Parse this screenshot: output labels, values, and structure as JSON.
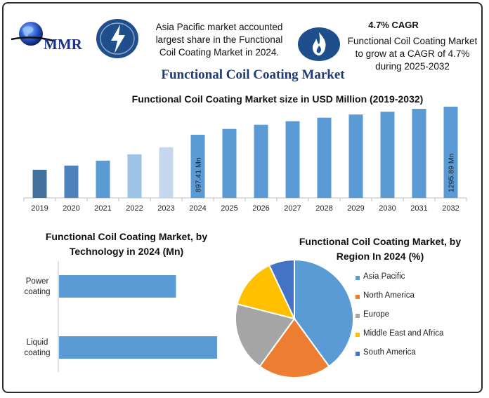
{
  "header": {
    "logo_text": "MMR",
    "headline": "Asia Pacific market accounted largest share in the Functional Coil Coating Market in 2024.",
    "cagr_title": "4.7% CAGR",
    "cagr_text": "Functional Coil Coating Market to grow at a CAGR of 4.7% during 2025-2032"
  },
  "icons": {
    "left_badge": "lightning-bolt-icon",
    "right_badge": "flame-icon"
  },
  "main_title": "Functional Coil Coating Market",
  "colors": {
    "title": "#1f3a78",
    "badge": "#1f4e8c",
    "bar": "#5b9bd5"
  },
  "chart_data": [
    {
      "type": "bar",
      "title": "Functional Coil Coating Market size in USD Million (2019-2032)",
      "xlabel": "",
      "ylabel": "",
      "categories": [
        "2019",
        "2020",
        "2021",
        "2022",
        "2023",
        "2024",
        "2025",
        "2026",
        "2027",
        "2028",
        "2029",
        "2030",
        "2031",
        "2032"
      ],
      "values": [
        400,
        460,
        530,
        620,
        720,
        897.41,
        980,
        1040,
        1090,
        1140,
        1185,
        1225,
        1265,
        1295.89
      ],
      "bar_colors": [
        "#41719c",
        "#4f81bd",
        "#5b9bd5",
        "#9dc3e6",
        "#c5d7ee",
        "#5b9bd5",
        "#5b9bd5",
        "#5b9bd5",
        "#5b9bd5",
        "#5b9bd5",
        "#5b9bd5",
        "#5b9bd5",
        "#5b9bd5",
        "#5b9bd5"
      ],
      "data_labels": [
        {
          "category": "2024",
          "text": "897.41 Mn"
        },
        {
          "category": "2032",
          "text": "1295.89 Mn"
        }
      ],
      "ylim": [
        0,
        1295.89
      ],
      "grid": false
    },
    {
      "type": "bar",
      "orientation": "horizontal",
      "title": "Functional Coil Coating Market, by Technology in 2024 (Mn)",
      "categories": [
        "Power coating",
        "Liquid coating"
      ],
      "values": [
        0.74,
        1.0
      ],
      "xlim": [
        0,
        1
      ],
      "color": "#5b9bd5"
    },
    {
      "type": "pie",
      "title": "Functional Coil Coating Market, by Region In 2024 (%)",
      "labels": [
        "Asia Pacific",
        "North America",
        "Europe",
        "Middle East and Africa",
        "South America"
      ],
      "values": [
        40,
        20,
        19,
        14,
        7
      ],
      "colors": [
        "#5b9bd5",
        "#ed7d31",
        "#a5a5a5",
        "#ffc000",
        "#4472c4"
      ],
      "legend": "right"
    }
  ]
}
